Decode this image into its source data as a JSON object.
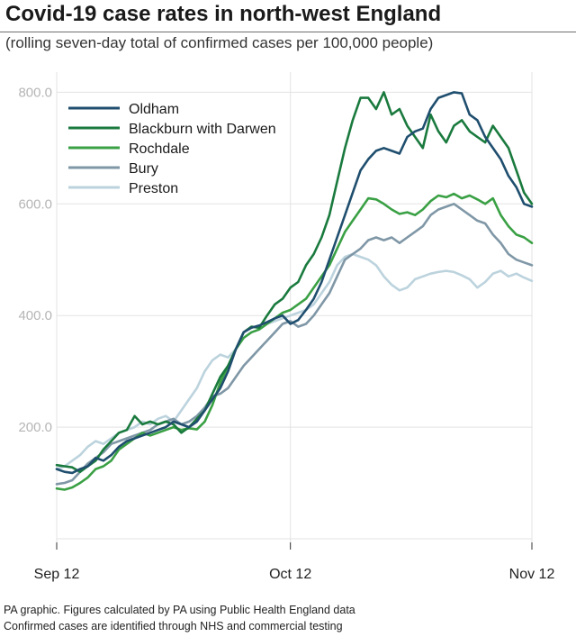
{
  "header": {
    "title": "Covid-19 case rates in north-west England",
    "subtitle": "(rolling seven-day total of confirmed cases per 100,000 people)"
  },
  "footer": {
    "line1": "PA graphic. Figures calculated by PA using Public Health England data",
    "line2": "Confirmed cases are identified through NHS and commercial testing"
  },
  "chart_data": {
    "type": "line",
    "title": "Covid-19 case rates in north-west England",
    "subtitle": "(rolling seven-day total of confirmed cases per 100,000 people)",
    "x_start": "2020-09-12",
    "x_end": "2020-11-12",
    "x_ticks": [
      {
        "date": "2020-09-12",
        "label": "Sep 12"
      },
      {
        "date": "2020-10-12",
        "label": "Oct 12"
      },
      {
        "date": "2020-11-12",
        "label": "Nov 12"
      }
    ],
    "y_ticks": [
      {
        "value": 200,
        "label": "200.0"
      },
      {
        "value": 400,
        "label": "400.0"
      },
      {
        "value": 600,
        "label": "600.0"
      },
      {
        "value": 800,
        "label": "800.0"
      }
    ],
    "ylim": [
      0,
      820
    ],
    "grid": "horizontal",
    "legend": "top-left",
    "series": [
      {
        "name": "Oldham",
        "color": "#1f4e6e",
        "values": [
          125,
          120,
          118,
          125,
          130,
          145,
          140,
          150,
          165,
          175,
          180,
          185,
          190,
          195,
          200,
          210,
          205,
          200,
          210,
          230,
          250,
          270,
          300,
          340,
          370,
          378,
          382,
          388,
          395,
          400,
          385,
          392,
          410,
          430,
          460,
          500,
          540,
          580,
          620,
          660,
          680,
          695,
          700,
          695,
          690,
          720,
          730,
          735,
          770,
          790,
          795,
          800,
          798,
          760,
          750,
          720,
          700,
          680,
          650,
          630,
          600,
          595
        ]
      },
      {
        "name": "Blackburn with Darwen",
        "color": "#1a7a3e",
        "values": [
          132,
          130,
          128,
          120,
          130,
          140,
          160,
          175,
          190,
          195,
          220,
          205,
          210,
          205,
          210,
          205,
          190,
          200,
          215,
          230,
          260,
          290,
          310,
          340,
          370,
          380,
          378,
          400,
          420,
          430,
          450,
          460,
          490,
          510,
          540,
          580,
          640,
          700,
          750,
          790,
          790,
          770,
          800,
          760,
          770,
          740,
          720,
          700,
          760,
          730,
          710,
          740,
          750,
          730,
          720,
          710,
          740,
          720,
          700,
          660,
          620,
          600
        ]
      },
      {
        "name": "Rochdale",
        "color": "#3aa044",
        "values": [
          90,
          88,
          92,
          100,
          110,
          125,
          130,
          140,
          160,
          170,
          180,
          190,
          185,
          190,
          195,
          200,
          195,
          198,
          196,
          210,
          240,
          280,
          310,
          340,
          360,
          370,
          375,
          385,
          395,
          405,
          410,
          420,
          430,
          450,
          470,
          490,
          520,
          550,
          570,
          590,
          610,
          608,
          600,
          590,
          582,
          585,
          580,
          590,
          605,
          615,
          612,
          618,
          610,
          615,
          608,
          600,
          610,
          580,
          560,
          545,
          540,
          530
        ]
      },
      {
        "name": "Bury",
        "color": "#7f97a6",
        "values": [
          98,
          100,
          105,
          120,
          135,
          145,
          155,
          170,
          175,
          180,
          185,
          190,
          195,
          205,
          210,
          215,
          205,
          210,
          220,
          235,
          255,
          260,
          270,
          290,
          310,
          325,
          340,
          355,
          370,
          385,
          390,
          380,
          385,
          400,
          420,
          440,
          470,
          500,
          510,
          520,
          535,
          540,
          535,
          540,
          530,
          540,
          550,
          560,
          580,
          590,
          595,
          600,
          590,
          580,
          570,
          565,
          545,
          530,
          510,
          500,
          495,
          490
        ]
      },
      {
        "name": "Preston",
        "color": "#bcd3dd",
        "values": [
          125,
          130,
          140,
          150,
          165,
          175,
          170,
          180,
          190,
          195,
          200,
          210,
          205,
          215,
          220,
          210,
          230,
          250,
          270,
          300,
          320,
          330,
          325,
          340,
          360,
          370,
          375,
          385,
          390,
          395,
          400,
          405,
          410,
          420,
          440,
          460,
          490,
          505,
          510,
          505,
          500,
          490,
          470,
          455,
          445,
          450,
          465,
          470,
          475,
          478,
          480,
          478,
          472,
          465,
          450,
          460,
          475,
          480,
          470,
          475,
          468,
          462
        ]
      }
    ]
  }
}
